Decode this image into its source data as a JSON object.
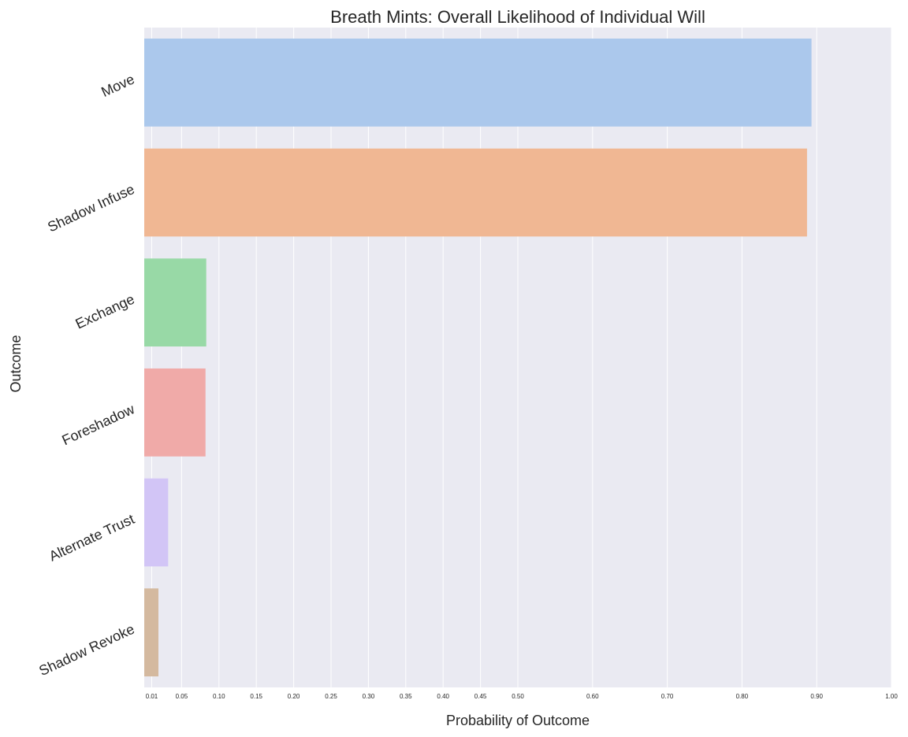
{
  "chart_data": {
    "type": "bar",
    "orientation": "horizontal",
    "title": "Breath Mints: Overall Likelihood of Individual Will",
    "xlabel": "Probability of Outcome",
    "ylabel": "Outcome",
    "categories": [
      "Move",
      "Shadow Infuse",
      "Exchange",
      "Foreshadow",
      "Alternate Trust",
      "Shadow Revoke"
    ],
    "values": [
      0.893,
      0.887,
      0.083,
      0.082,
      0.032,
      0.019
    ],
    "colors": [
      "#abc8ec",
      "#f0b793",
      "#98d9a6",
      "#f0aaa8",
      "#d2c5f6",
      "#d4b99f"
    ],
    "xticks": [
      0.01,
      0.05,
      0.1,
      0.15,
      0.2,
      0.25,
      0.3,
      0.35,
      0.4,
      0.45,
      0.5,
      0.6,
      0.7,
      0.8,
      0.9,
      1.0
    ],
    "xtick_labels": [
      "0.01",
      "0.05",
      "0.10",
      "0.15",
      "0.20",
      "0.25",
      "0.30",
      "0.35",
      "0.40",
      "0.45",
      "0.50",
      "0.60",
      "0.70",
      "0.80",
      "0.90",
      "1.00"
    ],
    "xlim": [
      0,
      1.0
    ],
    "grid": true,
    "background": "#eaeaf2"
  }
}
